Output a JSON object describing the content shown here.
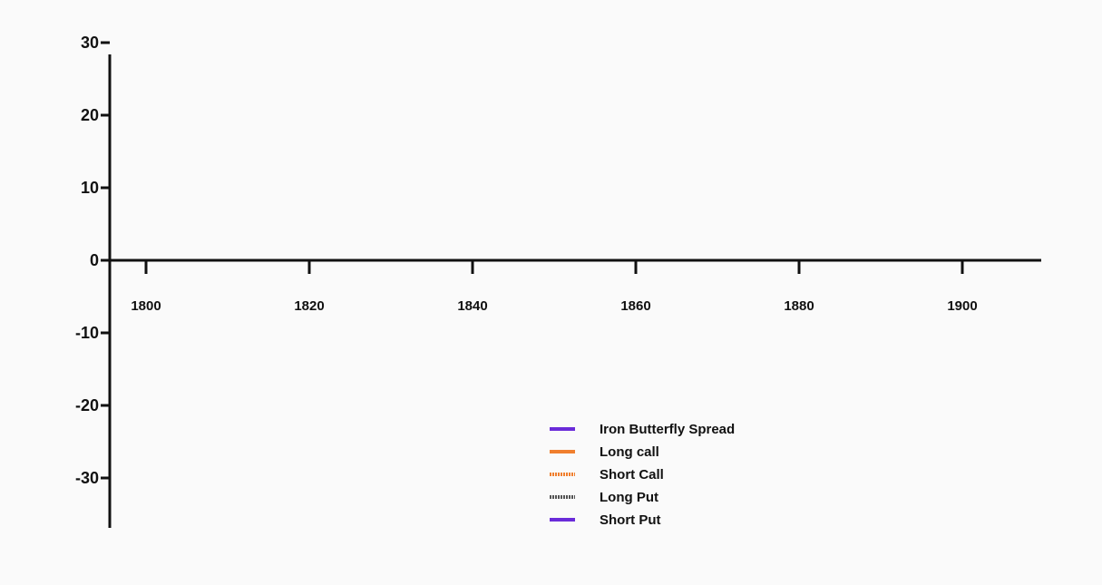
{
  "chart_data": {
    "type": "line",
    "title": "",
    "xlabel": "",
    "ylabel": "",
    "x_ticks": [
      1800,
      1820,
      1840,
      1860,
      1880,
      1900
    ],
    "y_ticks": [
      30,
      20,
      10,
      0,
      -10,
      -20,
      -30
    ],
    "xlim": [
      1793,
      1910
    ],
    "ylim": [
      -37,
      31
    ],
    "grid": false,
    "legend_position": "bottom-center",
    "series": [
      {
        "name": "Iron Butterfly Spread",
        "color": "#6a2bd9",
        "style": "solid",
        "values": []
      },
      {
        "name": "Long call",
        "color": "#f07f2e",
        "style": "solid",
        "values": []
      },
      {
        "name": "Short Call",
        "color": "#f07f2e",
        "style": "dotted",
        "values": []
      },
      {
        "name": "Long Put",
        "color": "#555555",
        "style": "dotted",
        "values": []
      },
      {
        "name": "Short Put",
        "color": "#6a2bd9",
        "style": "solid",
        "values": []
      }
    ]
  }
}
